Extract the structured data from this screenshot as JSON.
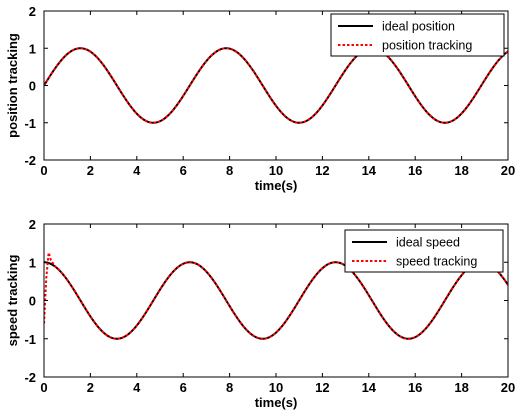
{
  "chart_data": [
    {
      "type": "line",
      "xlabel": "time(s)",
      "ylabel": "position tracking",
      "xlim": [
        0,
        20
      ],
      "ylim": [
        -2,
        2
      ],
      "xticks": [
        "0",
        "2",
        "4",
        "6",
        "8",
        "10",
        "12",
        "14",
        "16",
        "18",
        "20"
      ],
      "yticks": [
        "2",
        "1",
        "0",
        "-1",
        "-2"
      ],
      "legend_position": "top-right",
      "grid": false,
      "series": [
        {
          "name": "ideal position",
          "color": "#000000",
          "style": "solid",
          "function": "sin(t)",
          "x": [
            0,
            1.57,
            4.71,
            7.85,
            11.0,
            14.14,
            17.28,
            20
          ],
          "y": [
            0,
            1,
            -1,
            1,
            -1,
            1,
            -1,
            0.91
          ]
        },
        {
          "name": "position tracking",
          "color": "#ff0000",
          "style": "dotted",
          "function": "sin(t)",
          "x": [
            0,
            1.57,
            4.71,
            7.85,
            11.0,
            14.14,
            17.28,
            20
          ],
          "y": [
            0,
            1,
            -1,
            1,
            -1,
            1,
            -1,
            0.91
          ]
        }
      ]
    },
    {
      "type": "line",
      "xlabel": "time(s)",
      "ylabel": "speed tracking",
      "xlim": [
        0,
        20
      ],
      "ylim": [
        -2,
        2
      ],
      "xticks": [
        "0",
        "2",
        "4",
        "6",
        "8",
        "10",
        "12",
        "14",
        "16",
        "18",
        "20"
      ],
      "yticks": [
        "2",
        "1",
        "0",
        "-1",
        "-2"
      ],
      "legend_position": "top-right",
      "grid": false,
      "series": [
        {
          "name": "ideal speed",
          "color": "#000000",
          "style": "solid",
          "function": "cos(t)",
          "x": [
            0,
            3.14,
            6.28,
            9.42,
            12.57,
            15.71,
            20
          ],
          "y": [
            1,
            -1,
            1,
            -1,
            1,
            -1,
            0.41
          ]
        },
        {
          "name": "speed tracking",
          "color": "#ff0000",
          "style": "dotted",
          "function": "cos(t) with initial transient",
          "x": [
            0,
            0.1,
            0.2,
            0.3,
            0.5,
            3.14,
            6.28,
            9.42,
            12.57,
            15.71,
            20
          ],
          "y": [
            -0.6,
            0.6,
            1.25,
            1.05,
            0.9,
            -1,
            1,
            -1,
            1,
            -1,
            0.41
          ]
        }
      ]
    }
  ]
}
